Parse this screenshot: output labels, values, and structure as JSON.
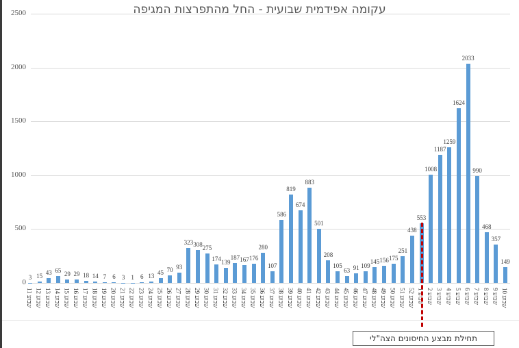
{
  "chart_data": {
    "type": "bar",
    "title": "עקומה אפידמית שבועית - החל מהתפרצות המגיפה",
    "xlabel": "",
    "ylabel": "",
    "ylim": [
      0,
      2500
    ],
    "yticks": [
      0,
      500,
      1000,
      1500,
      2000,
      2500
    ],
    "grid": true,
    "legend": null,
    "categories": [
      "שבוע 11",
      "שבוע 12",
      "שבוע 13",
      "שבוע 14",
      "שבוע 15",
      "שבוע 16",
      "שבוע 17",
      "שבוע 18",
      "שבוע 19",
      "שבוע 20",
      "שבוע 21",
      "שבוע 22",
      "שבוע 23",
      "שבוע 24",
      "שבוע 25",
      "שבוע 26",
      "שבוע 27",
      "שבוע 28",
      "שבוע 29",
      "שבוע 30",
      "שבוע 31",
      "שבוע 32",
      "שבוע 33",
      "שבוע 34",
      "שבוע 35",
      "שבוע 36",
      "שבוע 37",
      "שבוע 38",
      "שבוע 39",
      "שבוע 40",
      "שבוע 41",
      "שבוע 42",
      "שבוע 43",
      "שבוע 44",
      "שבוע 45",
      "שבוע 46",
      "שבוע 47",
      "שבוע 48",
      "שבוע 49",
      "שבוע 50",
      "שבוע 51",
      "שבוע 52",
      "שבוע 1",
      "שבוע 2",
      "שבוע 3",
      "שבוע 4",
      "שבוע 5",
      "שבוע 6",
      "שבוע 7",
      "שבוע 8",
      "שבוע 9",
      "שבוע 10"
    ],
    "values": [
      3,
      15,
      43,
      65,
      29,
      29,
      18,
      14,
      7,
      6,
      3,
      1,
      6,
      13,
      45,
      70,
      93,
      323,
      308,
      275,
      174,
      139,
      187,
      167,
      176,
      280,
      107,
      586,
      819,
      674,
      883,
      501,
      208,
      105,
      63,
      91,
      109,
      145,
      156,
      175,
      251,
      438,
      553,
      1008,
      1187,
      1259,
      1624,
      2033,
      990,
      468,
      357,
      149
    ],
    "bar_color": "#5b9bd5",
    "annotations": [
      {
        "type": "vertical-dashed-line",
        "at_category": "שבוע 1",
        "color": "#c00000",
        "label": "תחילת מבצע החיסונים הצה\"לי"
      }
    ]
  }
}
